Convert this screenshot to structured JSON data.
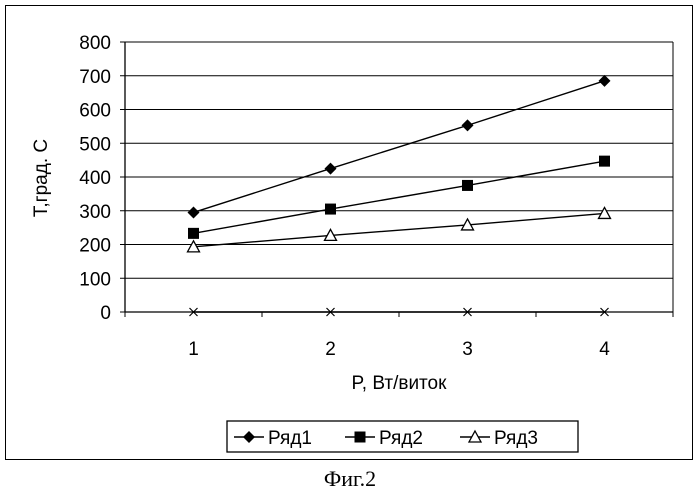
{
  "figure": {
    "caption": "Фиг.2"
  },
  "chart_data": {
    "type": "line",
    "x": [
      1,
      2,
      3,
      4
    ],
    "xlabel": "P, Вт/виток",
    "ylabel": "Т,град. С",
    "ylim": [
      0,
      800
    ],
    "yticks": [
      0,
      100,
      200,
      300,
      400,
      500,
      600,
      700,
      800
    ],
    "xticks": [
      1,
      2,
      3,
      4
    ],
    "grid": "horizontal",
    "legend_position": "bottom",
    "series": [
      {
        "name": "Ряд1",
        "marker": "diamond",
        "values": [
          295,
          425,
          553,
          685
        ]
      },
      {
        "name": "Ряд2",
        "marker": "square",
        "values": [
          233,
          305,
          375,
          447
        ]
      },
      {
        "name": "Ряд3",
        "marker": "triangle",
        "values": [
          193,
          227,
          258,
          292
        ]
      },
      {
        "name": "",
        "marker": "x",
        "values": [
          0,
          0,
          0,
          0
        ]
      }
    ],
    "colors": {
      "line": "#000000",
      "grid": "#000000",
      "background": "#ffffff"
    }
  }
}
